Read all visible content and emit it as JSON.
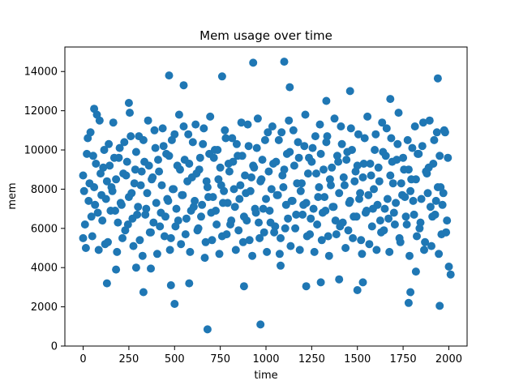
{
  "chart_data": {
    "type": "scatter",
    "title": "Mem usage over time",
    "xlabel": "time",
    "ylabel": "mem",
    "xlim": [
      -100,
      2100
    ],
    "ylim": [
      0,
      15250
    ],
    "xticks": [
      0,
      250,
      500,
      750,
      1000,
      1250,
      1500,
      1750,
      2000
    ],
    "xtick_labels": [
      "0",
      "250",
      "500",
      "750",
      "1000",
      "1250",
      "1500",
      "1750",
      "2000"
    ],
    "yticks": [
      0,
      2000,
      4000,
      6000,
      8000,
      10000,
      12000,
      14000
    ],
    "ytick_labels": [
      "0",
      "2000",
      "4000",
      "6000",
      "8000",
      "10000",
      "12000",
      "14000"
    ],
    "grid": false,
    "legend": "none",
    "point_color": "#1f77b4",
    "series": [
      {
        "x": [
          0,
          10,
          20,
          30,
          40,
          50,
          60,
          70,
          80,
          90,
          100,
          110,
          120,
          130,
          140,
          150,
          160,
          170,
          180,
          190,
          200,
          210,
          220,
          230,
          240,
          250,
          260,
          270,
          280,
          290,
          300,
          310,
          320,
          330,
          340,
          350,
          360,
          370,
          380,
          390,
          400,
          410,
          420,
          430,
          440,
          450,
          460,
          470,
          480,
          490,
          500,
          510,
          520,
          530,
          540,
          550,
          560,
          570,
          580,
          590,
          600,
          610,
          620,
          630,
          640,
          650,
          660,
          670,
          680,
          690,
          700,
          710,
          720,
          730,
          740,
          750,
          760,
          770,
          780,
          790,
          800,
          810,
          820,
          830,
          840,
          850,
          860,
          870,
          880,
          890,
          900,
          910,
          920,
          930,
          940,
          950,
          960,
          970,
          980,
          990,
          1000,
          1010,
          1020,
          1030,
          1040,
          1050,
          1060,
          1070,
          1080,
          1090,
          1100,
          1110,
          1120,
          1130,
          1140,
          1150,
          1160,
          1170,
          1180,
          1190,
          1200,
          1210,
          1220,
          1230,
          1240,
          1250,
          1260,
          1270,
          1280,
          1290,
          1300,
          1310,
          1320,
          1330,
          1340,
          1350,
          1360,
          1370,
          1380,
          1390,
          1400,
          1410,
          1420,
          1430,
          1440,
          1450,
          1460,
          1470,
          1480,
          1490,
          1500,
          1510,
          1520,
          1530,
          1540,
          1550,
          1560,
          1570,
          1580,
          1590,
          1600,
          1610,
          1620,
          1630,
          1640,
          1650,
          1660,
          1670,
          1680,
          1690,
          1700,
          1710,
          1720,
          1730,
          1740,
          1750,
          1760,
          1770,
          1780,
          1790,
          1800,
          1810,
          1820,
          1830,
          1840,
          1850,
          1860,
          1870,
          1880,
          1890,
          1900,
          1910,
          1920,
          1930,
          1940,
          1950,
          1960,
          1970,
          1980,
          1990,
          5,
          15,
          25,
          35,
          45,
          55,
          65,
          75,
          85,
          95,
          105,
          115,
          125,
          135,
          145,
          155,
          165,
          175,
          185,
          195,
          205,
          215,
          225,
          235,
          245,
          255,
          265,
          275,
          285,
          295,
          305,
          315,
          325,
          335,
          345,
          355,
          365,
          375,
          385,
          395,
          405,
          415,
          425,
          435,
          445,
          455,
          465,
          475,
          485,
          495,
          505,
          515,
          525,
          535,
          545,
          555,
          565,
          575,
          585,
          595,
          605,
          615,
          625,
          635,
          645,
          655,
          665,
          675,
          685,
          695,
          705,
          715,
          725,
          735,
          745,
          755,
          765,
          775,
          785,
          795,
          805,
          815,
          825,
          835,
          845,
          855,
          865,
          875,
          885,
          895,
          905,
          915,
          925,
          935,
          945,
          955,
          965,
          975,
          985,
          995,
          1005,
          1015,
          1025,
          1035,
          1045,
          1055,
          1065,
          1075,
          1085,
          1095,
          1105,
          1115,
          1125,
          1135,
          1145,
          1155,
          1165,
          1175,
          1185,
          1195,
          1205,
          1215,
          1225,
          1235,
          1245,
          1255,
          1265,
          1275,
          1285,
          1295,
          1305,
          1315,
          1325,
          1335,
          1345,
          1355,
          1365,
          1375,
          1385,
          1395,
          1405,
          1415,
          1425,
          1435,
          1445,
          1455,
          1465,
          1475,
          1485,
          1495,
          1505,
          1515,
          1525,
          1535,
          1545,
          1555,
          1565,
          1575,
          1585,
          1595,
          1605,
          1615,
          1625,
          1635,
          1645,
          1655,
          1665,
          1675,
          1685,
          1695,
          1705,
          1715,
          1725,
          1735,
          1745,
          1755,
          1765,
          1775,
          1785,
          1795,
          1805,
          1815,
          1825,
          1835,
          1845,
          1855,
          1865,
          1875,
          1885,
          1895,
          1905,
          1915,
          1925,
          1935,
          1945,
          1955,
          1965,
          1975,
          1985,
          1995,
          0,
          60,
          130,
          180,
          250,
          290,
          330,
          370,
          470,
          480,
          500,
          550,
          580,
          680,
          760,
          880,
          930,
          970,
          1080,
          1100,
          1130,
          1220,
          1300,
          1330,
          1400,
          1460,
          1500,
          1530,
          1680,
          1780,
          1790,
          1820,
          1940,
          1950,
          2000,
          2010
        ],
        "y": [
          8700,
          6200,
          9800,
          7400,
          10900,
          5600,
          8100,
          9300,
          6800,
          11500,
          7700,
          9100,
          5200,
          8400,
          10300,
          6900,
          7900,
          9600,
          8500,
          6300,
          10100,
          7200,
          8800,
          5900,
          9400,
          7600,
          10700,
          6500,
          8300,
          9900,
          7100,
          5400,
          8900,
          10500,
          6700,
          7800,
          9200,
          5800,
          8600,
          11000,
          7300,
          9500,
          6100,
          8200,
          10200,
          6600,
          7500,
          9700,
          5500,
          8000,
          10800,
          7000,
          6400,
          9000,
          7700,
          11200,
          5700,
          8400,
          9300,
          6900,
          10400,
          7400,
          8800,
          6000,
          9600,
          7200,
          11100,
          5300,
          8100,
          9800,
          6800,
          7600,
          10000,
          6200,
          8500,
          9100,
          5600,
          7900,
          10600,
          7300,
          8900,
          6400,
          9400,
          7100,
          10300,
          5900,
          8200,
          9700,
          6600,
          7800,
          11300,
          5400,
          8600,
          9200,
          7000,
          10100,
          6300,
          8400,
          9500,
          5800,
          7500,
          10900,
          6900,
          8000,
          9300,
          6100,
          7700,
          10500,
          5500,
          8700,
          9000,
          7200,
          6500,
          9900,
          7400,
          11000,
          6000,
          8300,
          9600,
          7900,
          6700,
          10200,
          7300,
          8800,
          5700,
          9400,
          7000,
          10700,
          6200,
          8100,
          9800,
          6800,
          7600,
          10400,
          5600,
          8500,
          9100,
          7100,
          6400,
          9700,
          7800,
          11200,
          6300,
          8200,
          9500,
          5900,
          7400,
          10000,
          6600,
          8900,
          9200,
          7500,
          5400,
          8600,
          10600,
          6900,
          7700,
          9300,
          6100,
          8000,
          10800,
          7200,
          8400,
          5800,
          9900,
          7000,
          11100,
          6500,
          8700,
          9400,
          6800,
          7300,
          10300,
          5500,
          8300,
          9600,
          7600,
          6200,
          9000,
          7900,
          10100,
          6700,
          8500,
          9800,
          6000,
          7500,
          11400,
          5300,
          8800,
          9100,
          7100,
          6600,
          10500,
          7400,
          8100,
          9700,
          5700,
          7800,
          10900,
          6400,
          7900,
          5000,
          10600,
          8300,
          6600,
          9700,
          7200,
          11800,
          4900,
          8800,
          6400,
          10000,
          7500,
          5300,
          9200,
          8100,
          11400,
          6900,
          4800,
          9600,
          7300,
          5500,
          10400,
          8700,
          6200,
          11900,
          7800,
          5100,
          9000,
          6700,
          10700,
          8200,
          4600,
          9400,
          7000,
          11500,
          5800,
          8500,
          6300,
          10100,
          4700,
          8900,
          6800,
          11100,
          5600,
          9800,
          7400,
          4900,
          10500,
          8000,
          6100,
          9200,
          11800,
          5200,
          7700,
          9500,
          6500,
          10800,
          4800,
          8600,
          7100,
          11300,
          5900,
          9000,
          6600,
          10300,
          4500,
          8400,
          7600,
          11700,
          5400,
          9600,
          6900,
          10000,
          4700,
          8200,
          7300,
          11000,
          5700,
          9300,
          6200,
          10600,
          8000,
          4900,
          9700,
          7500,
          11400,
          5300,
          8700,
          6400,
          10200,
          7900,
          4600,
          9100,
          6800,
          11600,
          5500,
          8500,
          7000,
          10500,
          4800,
          8900,
          6300,
          11200,
          5800,
          9400,
          7700,
          4700,
          10900,
          8100,
          6000,
          9800,
          11500,
          5100,
          7400,
          9200,
          6700,
          10400,
          4900,
          8300,
          7200,
          11800,
          5600,
          9600,
          6500,
          10100,
          4800,
          8800,
          7600,
          11300,
          5400,
          9000,
          6900,
          10700,
          4600,
          8200,
          7100,
          11600,
          5700,
          9400,
          6100,
          10300,
          8600,
          5000,
          9900,
          7300,
          11100,
          5500,
          8400,
          6600,
          10800,
          7800,
          4700,
          9300,
          6800,
          11700,
          5200,
          8700,
          7000,
          10000,
          4900,
          9100,
          6400,
          11400,
          5900,
          9700,
          7500,
          4800,
          10600,
          8300,
          6200,
          9500,
          11900,
          5300,
          7700,
          9000,
          6600,
          10500,
          4600,
          8500,
          7400,
          11200,
          5600,
          9800,
          6300,
          10200,
          4900,
          8900,
          7800,
          11500,
          5100,
          9300,
          6700,
          10900,
          4700,
          8100,
          7200,
          11000,
          5800,
          9600,
          5500,
          12100,
          3200,
          3900,
          12400,
          4000,
          2750,
          3950,
          13800,
          3100,
          2150,
          13300,
          3200,
          850,
          13750,
          3050,
          14450,
          1100,
          4100,
          14500,
          13200,
          3050,
          3250,
          12500,
          3400,
          13000,
          2850,
          3250,
          12600,
          2200,
          2750,
          3800,
          13650,
          2050,
          4050,
          3650
        ]
      }
    ]
  }
}
